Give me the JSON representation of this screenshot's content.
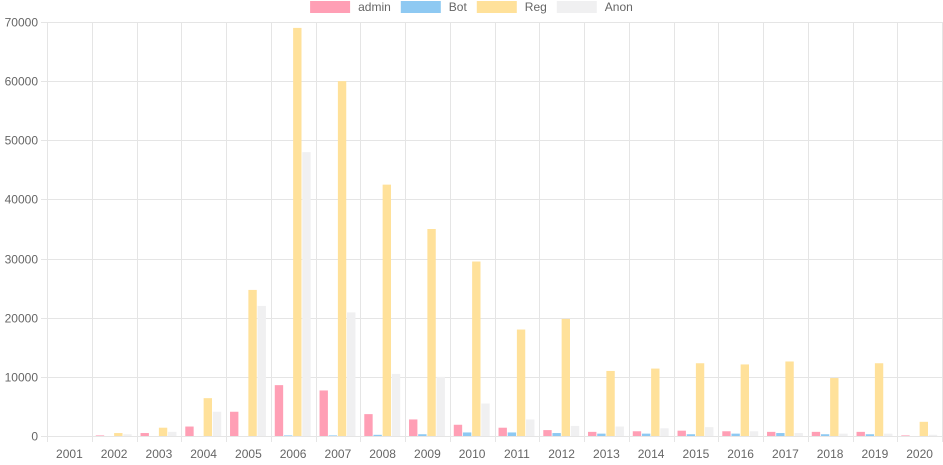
{
  "chart_data": {
    "type": "bar",
    "categories": [
      "2001",
      "2002",
      "2003",
      "2004",
      "2005",
      "2006",
      "2007",
      "2008",
      "2009",
      "2010",
      "2011",
      "2012",
      "2013",
      "2014",
      "2015",
      "2016",
      "2017",
      "2018",
      "2019",
      "2020"
    ],
    "series": [
      {
        "name": "admin",
        "color": "#ff9fb5",
        "values": [
          0,
          100,
          500,
          1600,
          4100,
          8600,
          7700,
          3700,
          2800,
          1900,
          1400,
          1000,
          700,
          800,
          900,
          800,
          700,
          700,
          700,
          100
        ]
      },
      {
        "name": "Bot",
        "color": "#8ec9f2",
        "values": [
          0,
          0,
          0,
          0,
          0,
          100,
          100,
          200,
          300,
          600,
          600,
          500,
          400,
          400,
          300,
          400,
          500,
          300,
          300,
          0
        ]
      },
      {
        "name": "Reg",
        "color": "#ffe19a",
        "values": [
          0,
          500,
          1400,
          6400,
          24700,
          69000,
          60000,
          42500,
          35000,
          29500,
          18000,
          19800,
          11000,
          11400,
          12300,
          12100,
          12600,
          9800,
          12300,
          2400
        ]
      },
      {
        "name": "Anon",
        "color": "#f0f0f1",
        "values": [
          0,
          300,
          700,
          4100,
          22000,
          48000,
          20900,
          10500,
          10000,
          5500,
          2800,
          1700,
          1600,
          1300,
          1500,
          800,
          500,
          400,
          400,
          200
        ]
      }
    ],
    "yticks": [
      "0",
      "10000",
      "20000",
      "30000",
      "40000",
      "50000",
      "60000",
      "70000"
    ],
    "ylim": [
      0,
      70000
    ],
    "grid": true,
    "legend": "top-center"
  }
}
